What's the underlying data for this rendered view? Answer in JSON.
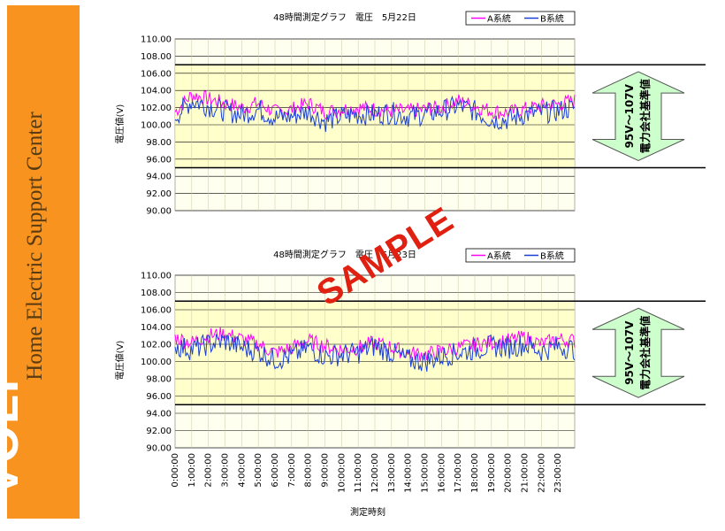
{
  "sidebar": {
    "logo": "VOLF",
    "subtitle": "Home Electric Support Center"
  },
  "watermark": "SAMPLE",
  "shared_xlabel": "測定時刻",
  "band_label_range": "95V～107V",
  "band_label_text": "電力会社基準値",
  "colors": {
    "series_a": "#ff00ff",
    "series_b": "#1a3fd8",
    "plot_bg": "#ffffcc",
    "band_arrow": "#ccffcc",
    "sidebar": "#f7931e"
  },
  "chart_data": [
    {
      "type": "line",
      "title": "48時間測定グラフ　電圧　5月22日",
      "ylabel": "電圧値(V)",
      "xlabel": "",
      "ylim": [
        90,
        110
      ],
      "yticks": [
        "110.00",
        "108.00",
        "106.00",
        "104.00",
        "102.00",
        "100.00",
        "98.00",
        "96.00",
        "94.00",
        "92.00",
        "90.00"
      ],
      "xlim": [
        0,
        24
      ],
      "reference_lines": [
        107,
        95
      ],
      "legend": "top-right",
      "series": [
        {
          "name": "A系統",
          "color_key": "series_a",
          "x": [
            0,
            1,
            2,
            3,
            4,
            5,
            6,
            7,
            8,
            9,
            10,
            11,
            12,
            13,
            14,
            15,
            16,
            17,
            18,
            19,
            20,
            21,
            22,
            23,
            24
          ],
          "y": [
            101.5,
            103.5,
            103.0,
            102.5,
            102.0,
            102.5,
            101.5,
            101.8,
            102.5,
            101.5,
            101.8,
            102.0,
            101.8,
            101.6,
            101.6,
            101.8,
            102.0,
            102.8,
            102.2,
            101.6,
            101.4,
            101.8,
            102.2,
            102.4,
            102.8
          ]
        },
        {
          "name": "B系統",
          "color_key": "series_b",
          "x": [
            0,
            1,
            2,
            3,
            4,
            5,
            6,
            7,
            8,
            9,
            10,
            11,
            12,
            13,
            14,
            15,
            16,
            17,
            18,
            19,
            20,
            21,
            22,
            23,
            24
          ],
          "y": [
            101.0,
            102.8,
            102.2,
            101.6,
            101.2,
            101.8,
            100.8,
            101.0,
            101.6,
            100.4,
            101.0,
            101.2,
            101.2,
            101.4,
            101.0,
            101.2,
            101.6,
            102.2,
            101.6,
            100.6,
            100.6,
            101.2,
            101.4,
            101.6,
            102.0
          ]
        }
      ]
    },
    {
      "type": "line",
      "title": "48時間測定グラフ　電圧　5月23日",
      "ylabel": "電圧値(V)",
      "xlabel": "測定時刻",
      "ylim": [
        90,
        110
      ],
      "yticks": [
        "110.00",
        "108.00",
        "106.00",
        "104.00",
        "102.00",
        "100.00",
        "98.00",
        "96.00",
        "94.00",
        "92.00",
        "90.00"
      ],
      "xlim": [
        0,
        24
      ],
      "xticks": [
        "0:00:00",
        "1:00:00",
        "2:00:00",
        "3:00:00",
        "4:00:00",
        "5:00:00",
        "6:00:00",
        "7:00:00",
        "8:00:00",
        "9:00:00",
        "10:00:00",
        "11:00:00",
        "12:00:00",
        "13:00:00",
        "14:00:00",
        "15:00:00",
        "16:00:00",
        "17:00:00",
        "18:00:00",
        "19:00:00",
        "20:00:00",
        "21:00:00",
        "22:00:00",
        "23:00:00"
      ],
      "reference_lines": [
        107,
        95
      ],
      "legend": "top-right",
      "series": [
        {
          "name": "A系統",
          "color_key": "series_a",
          "x": [
            0,
            1,
            2,
            3,
            4,
            5,
            6,
            7,
            8,
            9,
            10,
            11,
            12,
            13,
            14,
            15,
            16,
            17,
            18,
            19,
            20,
            21,
            22,
            23,
            24
          ],
          "y": [
            102.8,
            102.2,
            103.0,
            103.2,
            102.6,
            102.0,
            101.0,
            101.6,
            102.4,
            101.8,
            101.4,
            101.6,
            102.2,
            101.6,
            101.0,
            100.8,
            101.2,
            101.6,
            102.0,
            102.2,
            102.4,
            102.8,
            102.0,
            102.6,
            102.4
          ]
        },
        {
          "name": "B系統",
          "color_key": "series_b",
          "x": [
            0,
            1,
            2,
            3,
            4,
            5,
            6,
            7,
            8,
            9,
            10,
            11,
            12,
            13,
            14,
            15,
            16,
            17,
            18,
            19,
            20,
            21,
            22,
            23,
            24
          ],
          "y": [
            101.8,
            101.4,
            102.0,
            102.4,
            101.6,
            101.2,
            100.2,
            100.6,
            101.6,
            100.6,
            100.8,
            101.0,
            101.8,
            101.0,
            100.2,
            100.0,
            100.6,
            101.0,
            101.4,
            101.8,
            101.6,
            102.0,
            101.2,
            101.8,
            101.4
          ]
        }
      ]
    }
  ]
}
